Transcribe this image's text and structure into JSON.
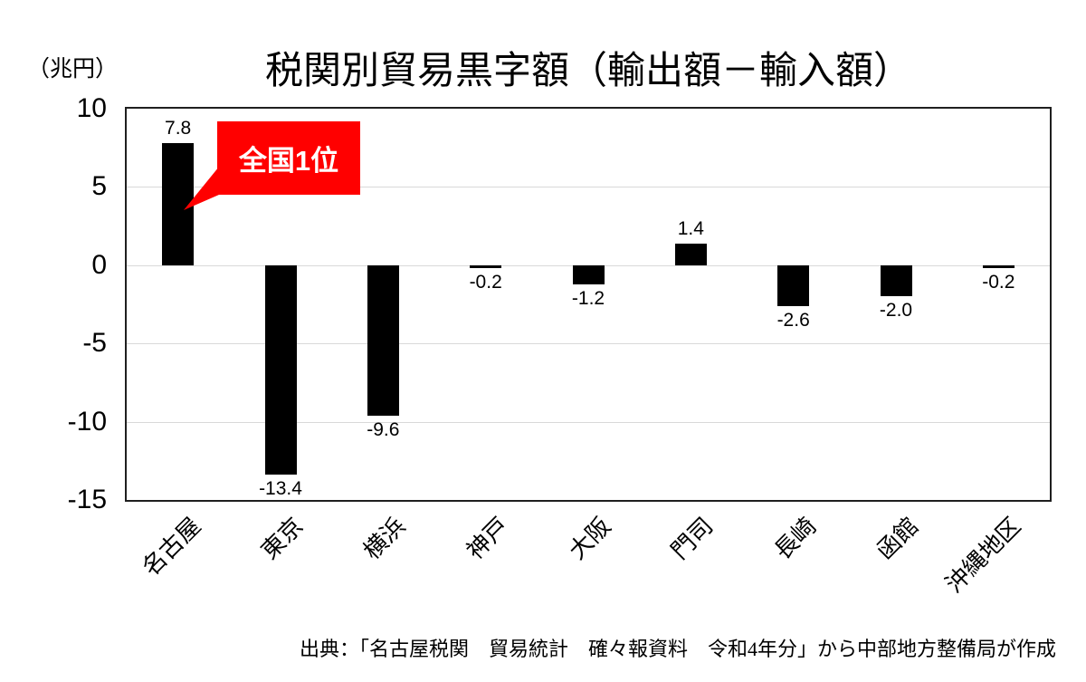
{
  "header": {
    "title": "税関別貿易黒字額（輸出額－輸入額）",
    "unit_label": "（兆円）"
  },
  "annotation": {
    "text": "全国1位"
  },
  "source": {
    "text": "出典：「名古屋税関　貿易統計　確々報資料　令和4年分」から中部地方整備局が作成"
  },
  "colors": {
    "bar": "#000000",
    "accent": "#ff0000",
    "gridline": "#d9d9d9",
    "frame": "#1f1f1f",
    "annotation_text": "#ffffff"
  },
  "chart_data": {
    "type": "bar",
    "title": "税関別貿易黒字額（輸出額－輸入額）",
    "unit": "兆円",
    "categories": [
      "名古屋",
      "東京",
      "横浜",
      "神戸",
      "大阪",
      "門司",
      "長崎",
      "函館",
      "沖縄地区"
    ],
    "values": [
      7.8,
      -13.4,
      -9.6,
      -0.2,
      -1.2,
      1.4,
      -2.6,
      -2.0,
      -0.2
    ],
    "data_labels": [
      "7.8",
      "-13.4",
      "-9.6",
      "-0.2",
      "-1.2",
      "1.4",
      "-2.6",
      "-2.0",
      "-0.2"
    ],
    "ylim": [
      -15,
      10
    ],
    "yticks": [
      10,
      5,
      0,
      -5,
      -10,
      -15
    ],
    "grid": true,
    "legend": false,
    "annotations": [
      {
        "text": "全国1位",
        "target_category": "名古屋"
      }
    ]
  }
}
